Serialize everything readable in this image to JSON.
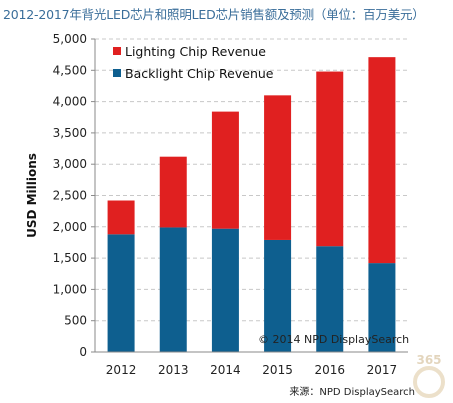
{
  "title": "2012-2017年背光LED芯片和照明LED芯片销售额及预测（单位：百万美元）",
  "source": "来源：NPD DisplaySearch",
  "watermark": {
    "text": "365",
    "colors": {
      "circle": "#c9a86a",
      "text": "#b08a45"
    }
  },
  "colors": {
    "lighting": "#e02020",
    "backlight": "#0e5f8f",
    "grid": "#c8c8c8",
    "axis": "#8a8a8a",
    "title": "#3a6e9a"
  },
  "chart_data": {
    "type": "bar",
    "stacked": true,
    "categories": [
      "2012",
      "2013",
      "2014",
      "2015",
      "2016",
      "2017"
    ],
    "series": [
      {
        "name": "Backlight Chip Revenue",
        "values": [
          1880,
          1990,
          1970,
          1790,
          1690,
          1420
        ]
      },
      {
        "name": "Lighting Chip Revenue",
        "values": [
          540,
          1130,
          1870,
          2310,
          2790,
          3290
        ]
      }
    ],
    "legend_order": [
      "Lighting Chip Revenue",
      "Backlight Chip Revenue"
    ],
    "ylabel": "USD Millions",
    "xlabel": "",
    "ylim": [
      0,
      5000
    ],
    "yticks": [
      0,
      500,
      1000,
      1500,
      2000,
      2500,
      3000,
      3500,
      4000,
      4500,
      5000
    ],
    "ytick_labels": [
      "0",
      "500",
      "1,000",
      "1,500",
      "2,000",
      "2,500",
      "3,000",
      "3,500",
      "4,000",
      "4,500",
      "5,000"
    ],
    "grid": true,
    "legend_position": "top-left",
    "annotation": "© 2014 NPD DisplaySearch"
  }
}
